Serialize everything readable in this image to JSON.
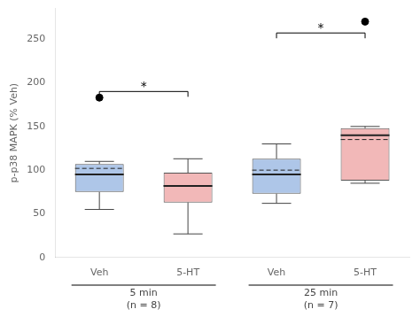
{
  "chart_data": {
    "type": "box",
    "ylabel": "p-p38 MAPK (% Veh)",
    "ylim": [
      0,
      285
    ],
    "yticks": [
      0,
      50,
      100,
      150,
      200,
      250
    ],
    "grid": false,
    "groups": [
      {
        "label": "5 min",
        "note": "(n = 8)",
        "significance": {
          "label": "*",
          "y": 190
        },
        "boxes": [
          {
            "category": "Veh",
            "color": "#aec6e8",
            "q1": 75,
            "median": 95,
            "q3": 107,
            "whisker_low": 55,
            "whisker_high": 110,
            "mean": 102,
            "outliers": [
              183
            ]
          },
          {
            "category": "5-HT",
            "color": "#f2b8b8",
            "q1": 63,
            "median": 82,
            "q3": 97,
            "whisker_low": 27,
            "whisker_high": 113,
            "mean": 82,
            "outliers": []
          }
        ]
      },
      {
        "label": "25 min",
        "note": "(n = 7)",
        "significance": {
          "label": "*",
          "y": 257
        },
        "boxes": [
          {
            "category": "Veh",
            "color": "#aec6e8",
            "q1": 73,
            "median": 95,
            "q3": 113,
            "whisker_low": 62,
            "whisker_high": 130,
            "mean": 100,
            "outliers": []
          },
          {
            "category": "5-HT",
            "color": "#f2b8b8",
            "q1": 88,
            "median": 140,
            "q3": 148,
            "whisker_low": 85,
            "whisker_high": 150,
            "mean": 135,
            "outliers": [
              270
            ]
          }
        ]
      }
    ]
  }
}
